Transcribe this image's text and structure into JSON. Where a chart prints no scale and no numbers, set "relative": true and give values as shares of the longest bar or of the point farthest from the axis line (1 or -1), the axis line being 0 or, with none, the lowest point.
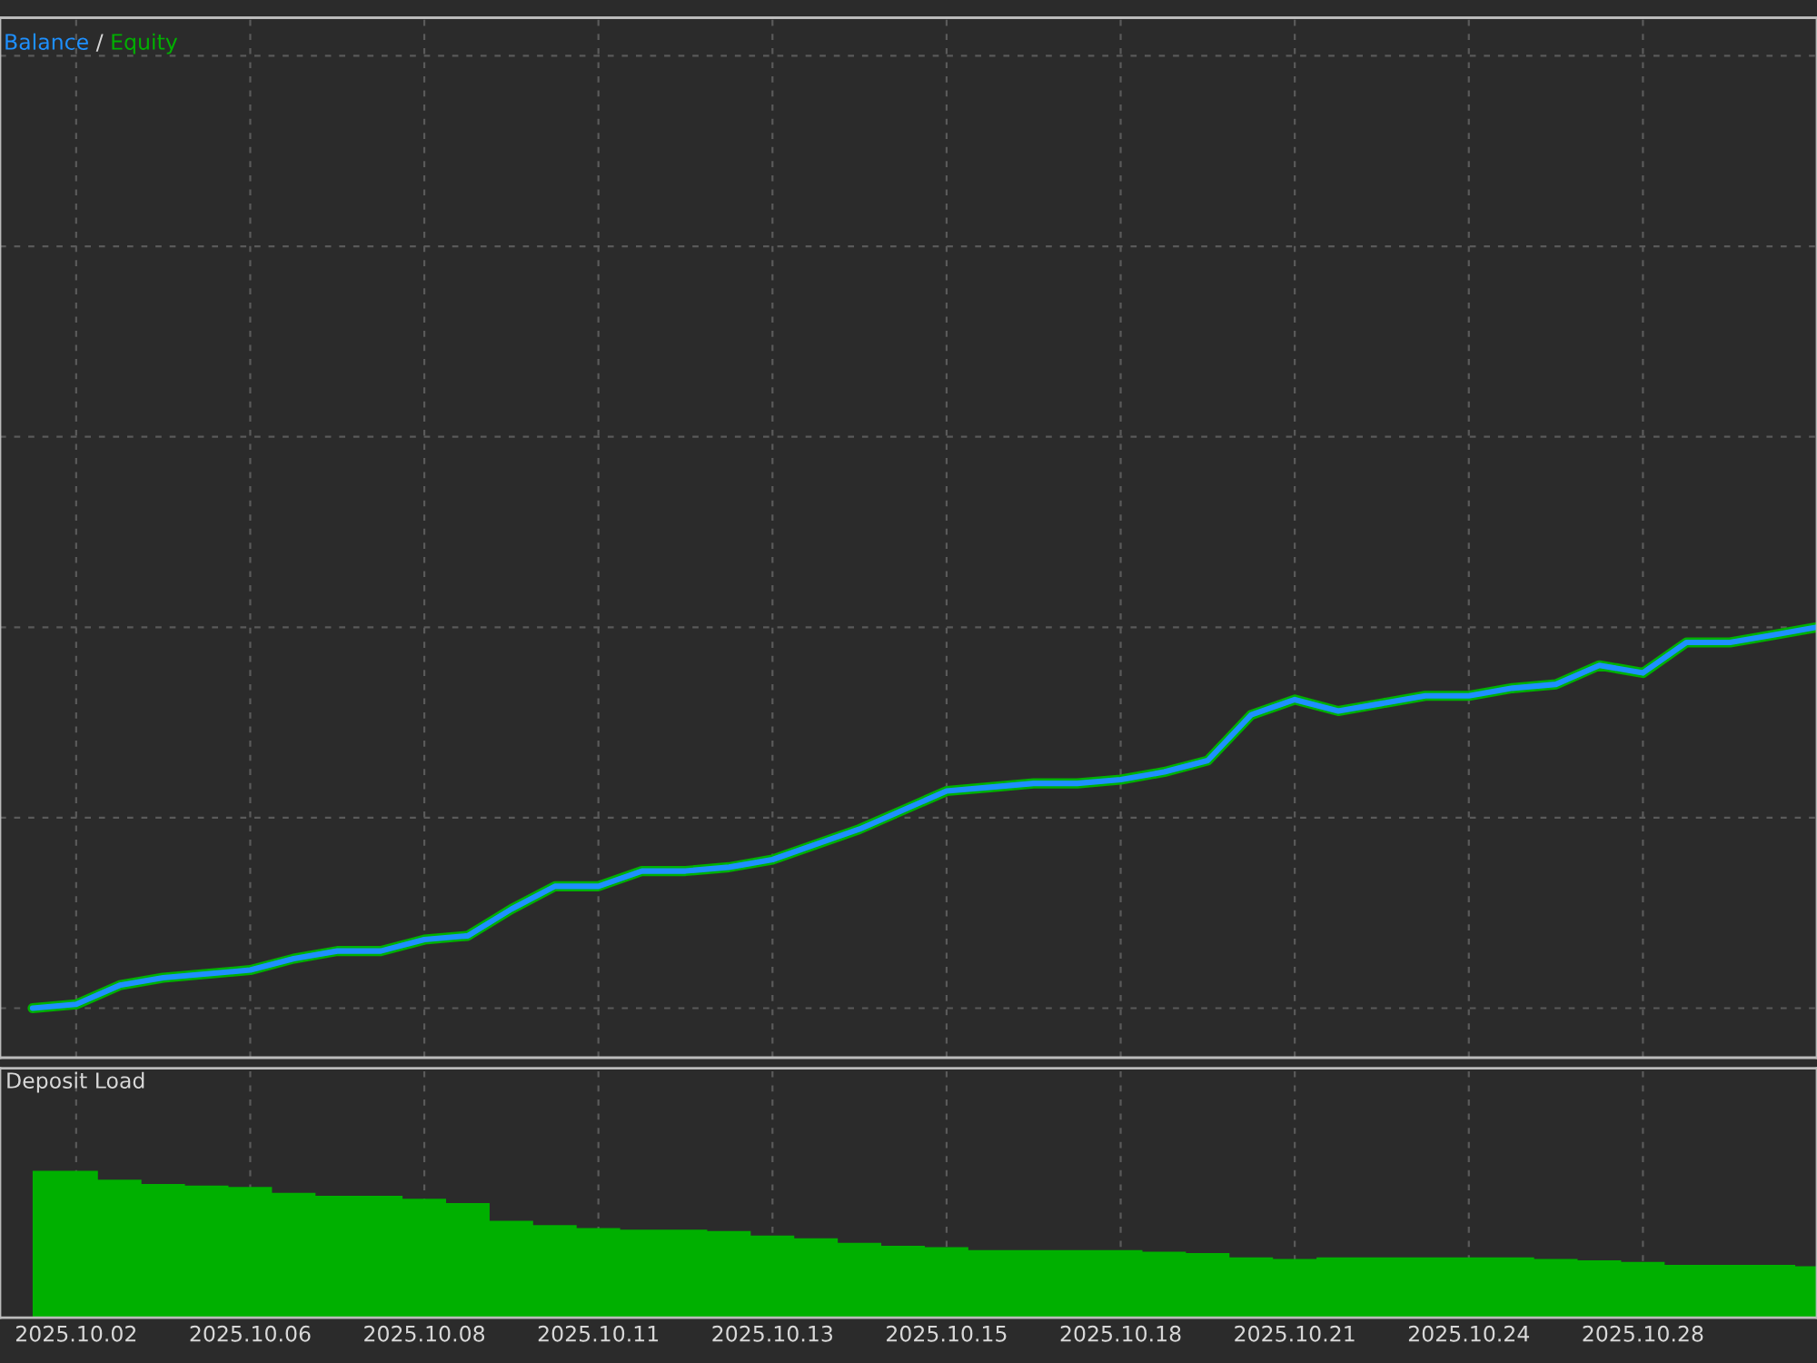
{
  "chart_data": [
    {
      "type": "line",
      "relative": true,
      "legend": "top left",
      "annotations": [
        "/"
      ],
      "grid": true,
      "tick_labels": false,
      "categories": [
        null,
        "2025.10.02",
        null,
        null,
        null,
        "2025.10.06",
        null,
        null,
        null,
        "2025.10.08",
        null,
        null,
        null,
        "2025.10.11",
        null,
        null,
        null,
        "2025.10.13",
        null,
        null,
        null,
        "2025.10.15",
        null,
        null,
        null,
        "2025.10.18",
        null,
        null,
        null,
        "2025.10.21",
        null,
        null,
        null,
        "2025.10.24",
        null,
        null,
        null,
        "2025.10.28",
        null,
        null,
        null,
        null
      ],
      "series": [
        {
          "name": "Equity",
          "color": "#00b000",
          "values": [
            0,
            0.01,
            0.06,
            0.08,
            0.09,
            0.1,
            0.13,
            0.15,
            0.15,
            0.18,
            0.19,
            0.26,
            0.32,
            0.32,
            0.36,
            0.36,
            0.37,
            0.39,
            0.43,
            0.47,
            0.52,
            0.57,
            0.58,
            0.59,
            0.59,
            0.6,
            0.62,
            0.65,
            0.77,
            0.81,
            0.78,
            0.8,
            0.82,
            0.82,
            0.84,
            0.85,
            0.9,
            0.88,
            0.96,
            0.96,
            0.98,
            1
          ]
        },
        {
          "name": "Balance",
          "color": "#1e90ff",
          "values": [
            0,
            0.01,
            0.06,
            0.08,
            0.09,
            0.1,
            0.13,
            0.15,
            0.15,
            0.18,
            0.19,
            0.26,
            0.32,
            0.32,
            0.36,
            0.36,
            0.37,
            0.39,
            0.43,
            0.47,
            0.52,
            0.57,
            0.58,
            0.59,
            0.59,
            0.6,
            0.62,
            0.65,
            0.77,
            0.81,
            0.78,
            0.8,
            0.82,
            0.82,
            0.84,
            0.85,
            0.9,
            0.88,
            0.96,
            0.96,
            0.98,
            1
          ]
        }
      ]
    },
    {
      "type": "area",
      "relative": true,
      "title": "Deposit Load",
      "grid": "x",
      "tick_labels": "x",
      "categories": [
        null,
        "2025.10.02",
        null,
        null,
        null,
        "2025.10.06",
        null,
        null,
        null,
        "2025.10.08",
        null,
        null,
        null,
        "2025.10.11",
        null,
        null,
        null,
        "2025.10.13",
        null,
        null,
        null,
        "2025.10.15",
        null,
        null,
        null,
        "2025.10.18",
        null,
        null,
        null,
        "2025.10.21",
        null,
        null,
        null,
        "2025.10.24",
        null,
        null,
        null,
        "2025.10.28",
        null,
        null,
        null,
        null
      ],
      "series": [
        {
          "color": "#00b000",
          "values": [
            1.0,
            1.0,
            0.94,
            0.91,
            0.9,
            0.89,
            0.85,
            0.83,
            0.83,
            0.81,
            0.78,
            0.66,
            0.63,
            0.61,
            0.6,
            0.6,
            0.59,
            0.56,
            0.54,
            0.51,
            0.49,
            0.48,
            0.46,
            0.46,
            0.46,
            0.46,
            0.45,
            0.44,
            0.41,
            0.4,
            0.41,
            0.41,
            0.41,
            0.41,
            0.41,
            0.4,
            0.39,
            0.38,
            0.36,
            0.36,
            0.36,
            0.35
          ]
        }
      ]
    }
  ]
}
